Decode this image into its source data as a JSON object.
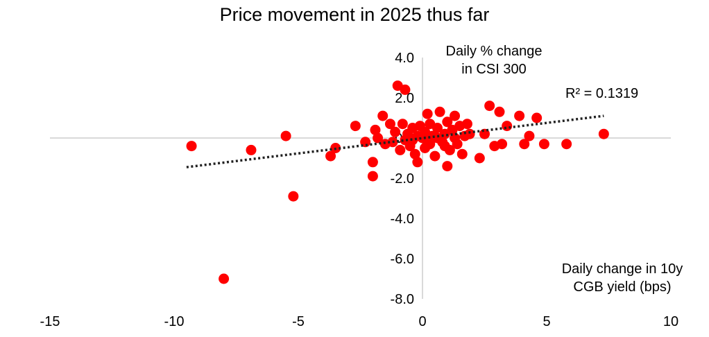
{
  "chart_data": {
    "type": "scatter",
    "title": "Price movement in 2025 thus far",
    "xlabel": "Daily change in 10y CGB yield (bps)",
    "ylabel": "Daily % change in CSI 300",
    "xlim": [
      -15,
      10
    ],
    "ylim": [
      -8.0,
      4.0
    ],
    "x_ticks": [
      "-15",
      "-10",
      "-5",
      "0",
      "5",
      "10"
    ],
    "y_ticks": [
      "4.0",
      "2.0",
      "0.0",
      "-2.0",
      "-4.0",
      "-6.0",
      "-8.0"
    ],
    "trendline": {
      "style": "dotted",
      "x": [
        -9.5,
        7.3
      ],
      "y": [
        -1.45,
        1.1
      ]
    },
    "annotation": "R² = 0.1319",
    "marker_color": "#ff0000",
    "axis_color": "#d9d9d9",
    "points": [
      {
        "x": -9.3,
        "y": -0.4
      },
      {
        "x": -6.9,
        "y": -0.6
      },
      {
        "x": -5.5,
        "y": 0.1
      },
      {
        "x": -5.2,
        "y": -2.9
      },
      {
        "x": -8.0,
        "y": -7.0
      },
      {
        "x": -3.5,
        "y": -0.5
      },
      {
        "x": -3.7,
        "y": -0.9
      },
      {
        "x": -2.7,
        "y": 0.6
      },
      {
        "x": -2.3,
        "y": -0.2
      },
      {
        "x": -2.0,
        "y": -1.2
      },
      {
        "x": -2.0,
        "y": -1.9
      },
      {
        "x": -1.9,
        "y": 0.4
      },
      {
        "x": -1.8,
        "y": 0.0
      },
      {
        "x": -1.6,
        "y": 1.1
      },
      {
        "x": -1.5,
        "y": -0.3
      },
      {
        "x": -1.3,
        "y": 0.7
      },
      {
        "x": -1.2,
        "y": -0.2
      },
      {
        "x": -1.1,
        "y": 0.3
      },
      {
        "x": -1.0,
        "y": 2.6
      },
      {
        "x": -0.7,
        "y": 2.4
      },
      {
        "x": -0.9,
        "y": -0.6
      },
      {
        "x": -0.8,
        "y": 0.7
      },
      {
        "x": -0.7,
        "y": -0.1
      },
      {
        "x": -0.6,
        "y": 0.2
      },
      {
        "x": -0.5,
        "y": -0.4
      },
      {
        "x": -0.4,
        "y": 0.5
      },
      {
        "x": -0.3,
        "y": -0.8
      },
      {
        "x": -0.2,
        "y": -1.2
      },
      {
        "x": -0.2,
        "y": 0.1
      },
      {
        "x": 0.0,
        "y": 0.0
      },
      {
        "x": 0.1,
        "y": 0.3
      },
      {
        "x": 0.1,
        "y": -0.5
      },
      {
        "x": 0.2,
        "y": 1.2
      },
      {
        "x": 0.3,
        "y": 0.7
      },
      {
        "x": 0.3,
        "y": -0.3
      },
      {
        "x": 0.4,
        "y": 0.1
      },
      {
        "x": 0.5,
        "y": -0.9
      },
      {
        "x": 0.6,
        "y": 0.5
      },
      {
        "x": 0.7,
        "y": 1.3
      },
      {
        "x": 0.8,
        "y": -0.2
      },
      {
        "x": 0.9,
        "y": 0.2
      },
      {
        "x": 1.0,
        "y": 0.8
      },
      {
        "x": 1.0,
        "y": -1.4
      },
      {
        "x": 1.1,
        "y": -0.6
      },
      {
        "x": 1.2,
        "y": 0.4
      },
      {
        "x": 1.3,
        "y": 1.1
      },
      {
        "x": 1.4,
        "y": -0.3
      },
      {
        "x": 1.5,
        "y": 0.6
      },
      {
        "x": 1.6,
        "y": -0.8
      },
      {
        "x": 1.7,
        "y": 0.1
      },
      {
        "x": 1.8,
        "y": 0.7
      },
      {
        "x": 1.9,
        "y": 0.2
      },
      {
        "x": 2.3,
        "y": -1.0
      },
      {
        "x": 2.5,
        "y": 0.2
      },
      {
        "x": 2.7,
        "y": 1.6
      },
      {
        "x": 2.9,
        "y": -0.4
      },
      {
        "x": 3.1,
        "y": 1.3
      },
      {
        "x": 3.2,
        "y": -0.3
      },
      {
        "x": 3.4,
        "y": 0.6
      },
      {
        "x": 3.9,
        "y": 1.1
      },
      {
        "x": 4.1,
        "y": -0.3
      },
      {
        "x": 4.3,
        "y": 0.1
      },
      {
        "x": 4.6,
        "y": 1.0
      },
      {
        "x": 4.9,
        "y": -0.3
      },
      {
        "x": 5.8,
        "y": -0.3
      },
      {
        "x": 7.3,
        "y": 0.2
      },
      {
        "x": -0.4,
        "y": -0.1
      },
      {
        "x": 0.2,
        "y": -0.2
      },
      {
        "x": 0.6,
        "y": 0.0
      },
      {
        "x": -0.1,
        "y": 0.6
      },
      {
        "x": 1.3,
        "y": 0.0
      },
      {
        "x": 0.9,
        "y": -0.4
      }
    ]
  }
}
